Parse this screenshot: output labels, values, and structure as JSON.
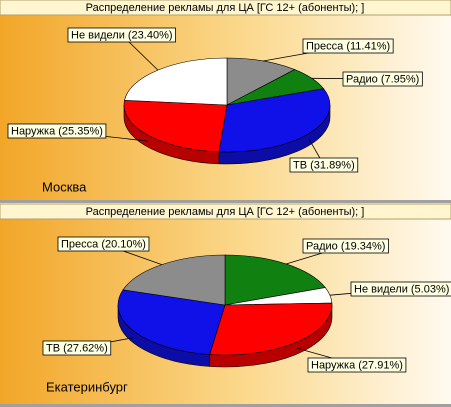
{
  "chart_data": [
    {
      "type": "pie",
      "title": "Распределение рекламы для ЦА [ГС 12+ (абоненты); ]",
      "subtitle": "Москва",
      "values": [
        11.41,
        7.95,
        31.89,
        25.35,
        23.4
      ],
      "value_labels": [
        "Пресса (11.41%)",
        "Радио (7.95%)",
        "ТВ (31.89%)",
        "Наружка (25.35%)",
        "Не видели (23.40%)"
      ],
      "colors": [
        "#8c8c8c",
        "#108010",
        "#1010e8",
        "#ff0000",
        "#ffffff"
      ]
    },
    {
      "type": "pie",
      "title": "Распределение рекламы для ЦА [ГС 12+ (абоненты); ]",
      "subtitle": "Екатеринбург",
      "values": [
        19.34,
        5.03,
        27.91,
        27.62,
        20.1
      ],
      "value_labels": [
        "Радио (19.34%)",
        "Не видели (5.03%)",
        "Наружка (27.91%)",
        "ТВ (27.62%)",
        "Пресса (20.10%)"
      ],
      "colors": [
        "#108010",
        "#ffffff",
        "#ff0000",
        "#1010e8",
        "#8c8c8c"
      ]
    }
  ]
}
